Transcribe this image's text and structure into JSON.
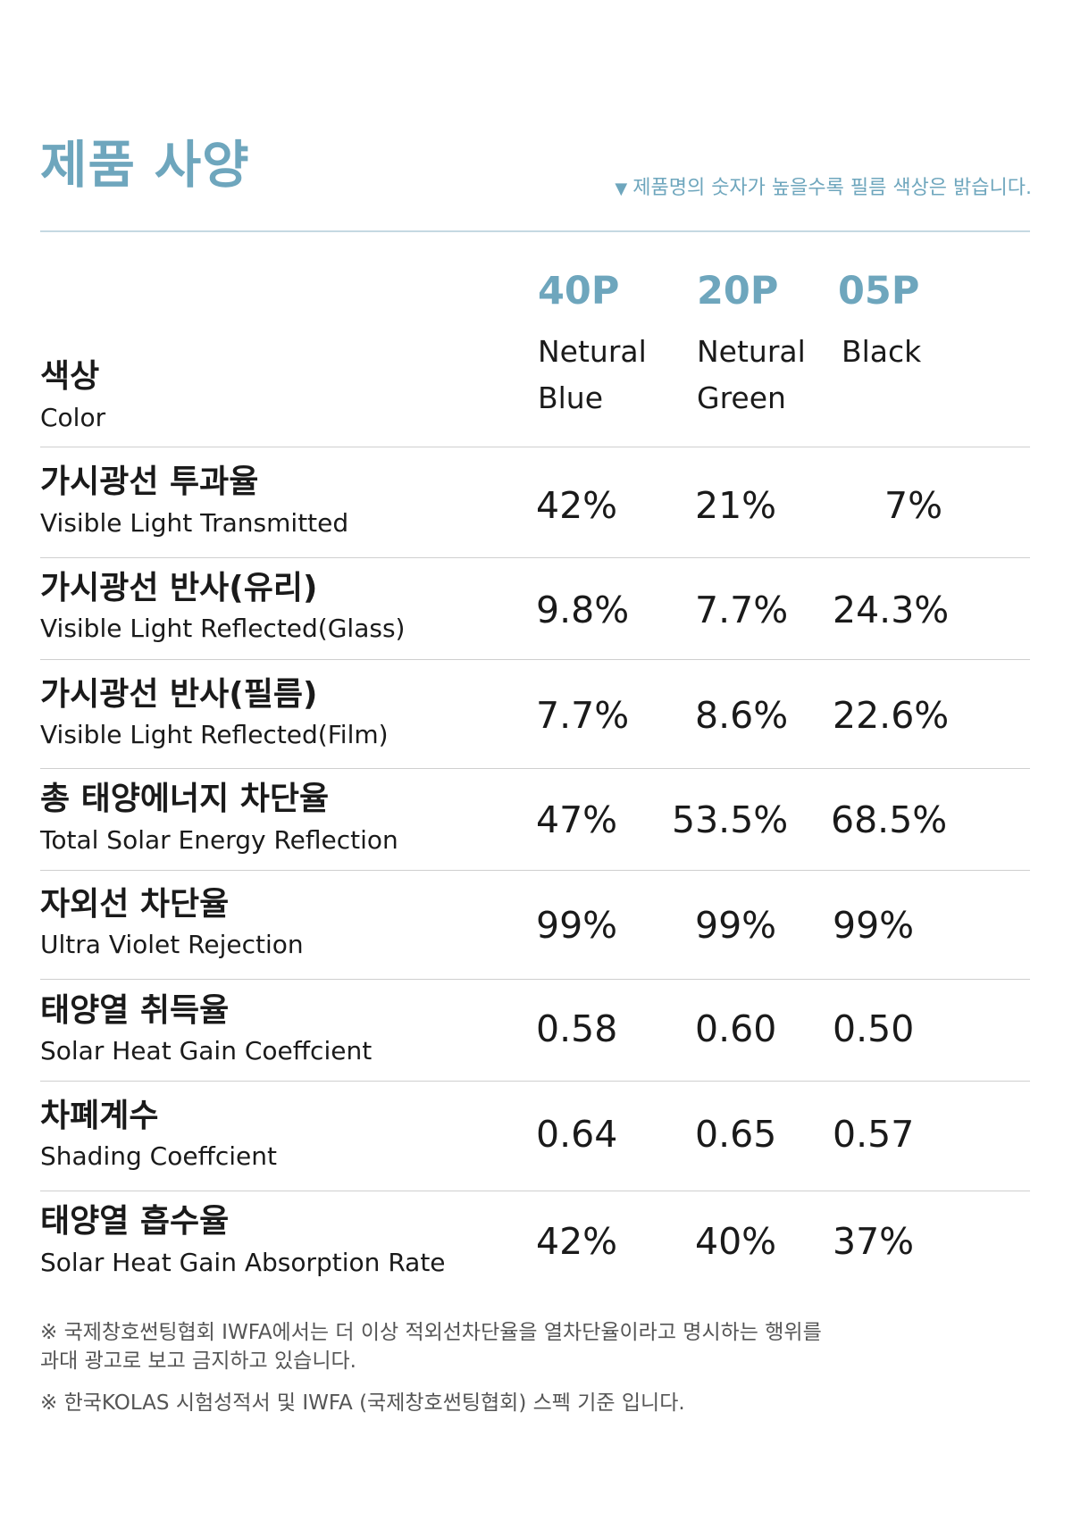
{
  "header": {
    "title": "제품 사양",
    "note_icon": "▼",
    "note": "제품명의 숫자가 높을수록 필름 색상은 밝습니다."
  },
  "columns": [
    {
      "code": "40P",
      "color_line1": "Netural",
      "color_line2": "Blue"
    },
    {
      "code": "20P",
      "color_line1": "Netural",
      "color_line2": "Green"
    },
    {
      "code": "05P",
      "color_line1": "Black",
      "color_line2": ""
    }
  ],
  "color_row": {
    "ko": "색상",
    "en": "Color"
  },
  "rows": [
    {
      "ko": "가시광선 투과율",
      "en": "Visible Light Transmitted",
      "values": [
        "42%",
        "21%",
        "7%"
      ]
    },
    {
      "ko": "가시광선 반사(유리)",
      "en": "Visible Light Reflected(Glass)",
      "values": [
        "9.8%",
        "7.7%",
        "24.3%"
      ]
    },
    {
      "ko": "가시광선 반사(필름)",
      "en": "Visible Light Reflected(Film)",
      "values": [
        "7.7%",
        "8.6%",
        "22.6%"
      ]
    },
    {
      "ko": "총 태양에너지 차단율",
      "en": "Total Solar Energy Reflection",
      "values": [
        "47%",
        "53.5%",
        "68.5%"
      ]
    },
    {
      "ko": "자외선 차단율",
      "en": "Ultra Violet Rejection",
      "values": [
        "99%",
        "99%",
        "99%"
      ]
    },
    {
      "ko": "태양열 취득율",
      "en": "Solar Heat Gain Coeffcient",
      "values": [
        "0.58",
        "0.60",
        "0.50"
      ]
    },
    {
      "ko": "차폐계수",
      "en": "Shading Coeffcient",
      "values": [
        "0.64",
        "0.65",
        "0.57"
      ]
    },
    {
      "ko": "태양열 흡수율",
      "en": "Solar Heat Gain Absorption Rate",
      "values": [
        "42%",
        "40%",
        "37%"
      ]
    }
  ],
  "footnotes": {
    "note1_line1": "※ 국제창호썬팅협회 IWFA에서는 더 이상 적외선차단율을 열차단율이라고 명시하는 행위를",
    "note1_line2": "과대 광고로 보고 금지하고 있습니다.",
    "note2": "※ 한국KOLAS 시험성적서 및 IWFA (국제창호썬팅협회) 스펙 기준 입니다."
  }
}
